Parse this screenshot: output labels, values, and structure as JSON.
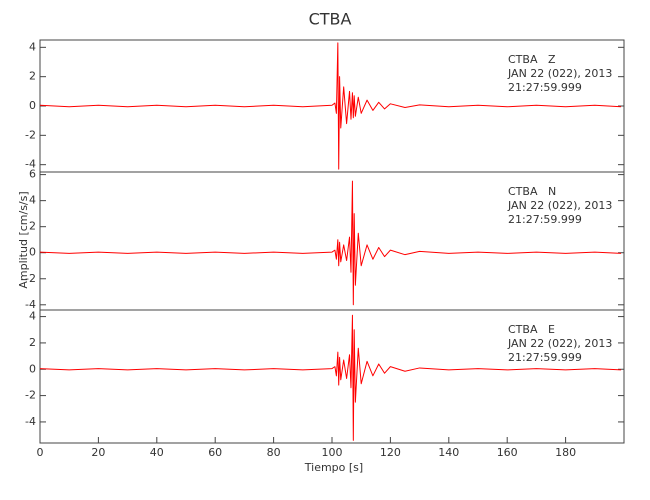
{
  "chart_data": [
    {
      "type": "line",
      "title": "CTBA",
      "annotations": [
        "CTBA   Z",
        "JAN 22 (022), 2013",
        "21:27:59.999"
      ],
      "xlim": [
        0,
        200
      ],
      "ylim": [
        -4.5,
        4.5
      ],
      "yticks": [
        -4,
        -2,
        0,
        2,
        4
      ],
      "color": "#ff0000",
      "x": [
        0,
        10,
        20,
        30,
        40,
        50,
        60,
        70,
        80,
        90,
        100,
        101,
        101.5,
        102,
        102.3,
        102.6,
        103,
        104,
        105,
        106,
        106.5,
        107,
        107.3,
        107.6,
        108,
        109,
        110,
        112,
        114,
        116,
        118,
        120,
        125,
        130,
        140,
        150,
        160,
        170,
        180,
        190,
        199
      ],
      "values": [
        0.05,
        -0.05,
        0.05,
        -0.05,
        0.05,
        -0.05,
        0.05,
        -0.05,
        0.05,
        -0.05,
        0.05,
        0.2,
        -0.5,
        4.3,
        -4.3,
        2.0,
        -1.5,
        1.3,
        -1.2,
        1.0,
        -0.9,
        0.9,
        -0.8,
        0.7,
        -0.7,
        0.6,
        -0.5,
        0.4,
        -0.3,
        0.25,
        -0.2,
        0.15,
        -0.1,
        0.08,
        -0.05,
        0.05,
        -0.05,
        0.05,
        -0.05,
        0.05,
        -0.05
      ]
    },
    {
      "type": "line",
      "ylabel": "Amplitud [cm/s/s]",
      "annotations": [
        "CTBA   N",
        "JAN 22 (022), 2013",
        "21:27:59.999"
      ],
      "xlim": [
        0,
        200
      ],
      "ylim": [
        -4.4,
        6.2
      ],
      "yticks": [
        -4,
        -2,
        0,
        2,
        4,
        6
      ],
      "color": "#ff0000",
      "x": [
        0,
        10,
        20,
        30,
        40,
        50,
        60,
        70,
        80,
        90,
        100,
        101,
        101.5,
        102,
        102.3,
        102.6,
        103,
        104,
        105,
        106,
        106.5,
        107,
        107.3,
        107.6,
        108,
        109,
        110,
        112,
        114,
        116,
        118,
        120,
        125,
        130,
        140,
        150,
        160,
        170,
        180,
        190,
        199
      ],
      "values": [
        0.05,
        -0.05,
        0.05,
        -0.05,
        0.05,
        -0.05,
        0.05,
        -0.05,
        0.05,
        -0.05,
        0.05,
        0.2,
        -0.5,
        1.0,
        -1.0,
        0.8,
        -0.7,
        0.6,
        -0.6,
        1.2,
        -1.5,
        5.5,
        -4.0,
        3.0,
        -2.5,
        1.5,
        -1.0,
        0.6,
        -0.5,
        0.4,
        -0.3,
        0.2,
        -0.15,
        0.1,
        -0.05,
        0.05,
        -0.05,
        0.05,
        -0.05,
        0.05,
        -0.05
      ]
    },
    {
      "type": "line",
      "xlabel": "Tiempo [s]",
      "annotations": [
        "CTBA   E",
        "JAN 22 (022), 2013",
        "21:27:59.999"
      ],
      "xlim": [
        0,
        200
      ],
      "xticks": [
        0,
        20,
        40,
        60,
        80,
        100,
        120,
        140,
        160,
        180
      ],
      "ylim": [
        -5.6,
        4.5
      ],
      "yticks": [
        -4,
        -2,
        0,
        2,
        4
      ],
      "color": "#ff0000",
      "x": [
        0,
        10,
        20,
        30,
        40,
        50,
        60,
        70,
        80,
        90,
        100,
        101,
        101.5,
        102,
        102.3,
        102.6,
        103,
        104,
        105,
        106,
        106.5,
        107,
        107.3,
        107.6,
        108,
        109,
        110,
        112,
        114,
        116,
        118,
        120,
        125,
        130,
        140,
        150,
        160,
        170,
        180,
        190,
        199
      ],
      "values": [
        0.05,
        -0.05,
        0.05,
        -0.05,
        0.05,
        -0.05,
        0.05,
        -0.05,
        0.05,
        -0.05,
        0.05,
        0.2,
        -0.5,
        1.3,
        -1.2,
        0.9,
        -0.8,
        0.7,
        -0.7,
        1.1,
        -1.4,
        4.1,
        -5.4,
        3.0,
        -2.5,
        1.6,
        -1.1,
        0.6,
        -0.5,
        0.4,
        -0.3,
        0.2,
        -0.15,
        0.1,
        -0.05,
        0.05,
        -0.05,
        0.05,
        -0.05,
        0.05,
        -0.05
      ]
    }
  ]
}
